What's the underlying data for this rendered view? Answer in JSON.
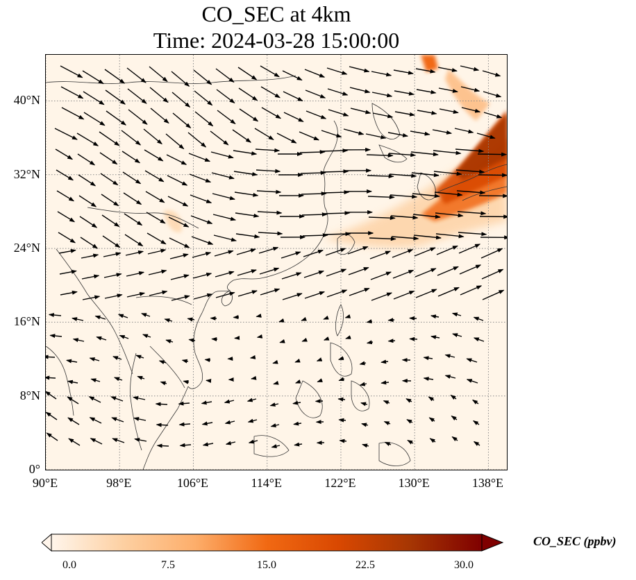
{
  "title": {
    "line1": "CO_SEC at 4km",
    "line2": "Time: 2024-03-28 15:00:00"
  },
  "map": {
    "lon_range": [
      90,
      140
    ],
    "lat_range": [
      0,
      45
    ],
    "lon_ticks": [
      {
        "value": 90,
        "label": "90°E"
      },
      {
        "value": 98,
        "label": "98°E"
      },
      {
        "value": 106,
        "label": "106°E"
      },
      {
        "value": 114,
        "label": "114°E"
      },
      {
        "value": 122,
        "label": "122°E"
      },
      {
        "value": 130,
        "label": "130°E"
      },
      {
        "value": 138,
        "label": "138°E"
      }
    ],
    "lat_ticks": [
      {
        "value": 0,
        "label": "0°"
      },
      {
        "value": 8,
        "label": "8°N"
      },
      {
        "value": 16,
        "label": "16°N"
      },
      {
        "value": 24,
        "label": "24°N"
      },
      {
        "value": 32,
        "label": "32°N"
      },
      {
        "value": 40,
        "label": "40°N"
      }
    ],
    "gridlines": "dotted",
    "colors": {
      "background": "#fff5e8",
      "coastline": "#333333",
      "gridline": "#888888",
      "wind_vector": "#000000"
    }
  },
  "colorbar": {
    "label": "CO_SEC (ppbv)",
    "min": 0.0,
    "max": 30.0,
    "ticks": [
      "0.0",
      "7.5",
      "15.0",
      "22.5",
      "30.0"
    ],
    "extend": "both",
    "colors": [
      "#fff5eb",
      "#fdd0a2",
      "#fdae6b",
      "#f16913",
      "#d94801",
      "#a63603",
      "#7f0000"
    ]
  }
}
